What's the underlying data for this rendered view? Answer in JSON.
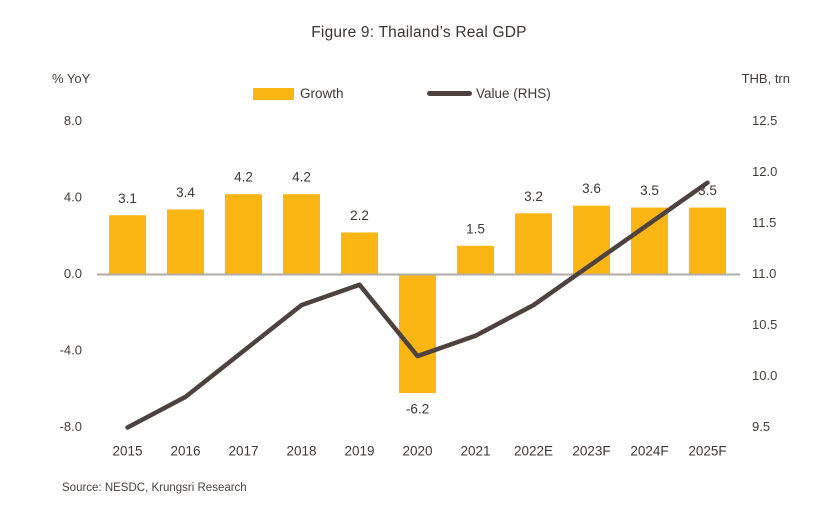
{
  "title": "Figure 9: Thailand’s Real GDP",
  "axes": {
    "left_unit": "% YoY",
    "right_unit": "THB, trn"
  },
  "legend": [
    {
      "label": "Growth",
      "marker": "bar-swatch"
    },
    {
      "label": "Value (RHS)",
      "marker": "line-swatch"
    }
  ],
  "source": "Source: NESDC, Krungsri Research",
  "colors": {
    "bar": "#fcb614",
    "line": "#4d423d",
    "text_dark": "#3d3834",
    "tick_text": "#443e3a",
    "zero_line": "#b2aba7"
  },
  "chart_data": {
    "type": "bar+line",
    "title": "Figure 9: Thailand’s Real GDP",
    "categories": [
      "2015",
      "2016",
      "2017",
      "2018",
      "2019",
      "2020",
      "2021",
      "2022E",
      "2023F",
      "2024F",
      "2025F"
    ],
    "series": [
      {
        "name": "Growth",
        "type": "bar",
        "axis": "left",
        "unit": "% YoY",
        "values": [
          3.1,
          3.4,
          4.2,
          4.2,
          2.2,
          -6.2,
          1.5,
          3.2,
          3.6,
          3.5,
          3.5
        ],
        "data_labels": [
          "3.1",
          "3.4",
          "4.2",
          "4.2",
          "2.2",
          "-6.2",
          "1.5",
          "3.2",
          "3.6",
          "3.5",
          "3.5"
        ]
      },
      {
        "name": "Value (RHS)",
        "type": "line",
        "axis": "right",
        "unit": "THB, trn",
        "values": [
          9.5,
          9.8,
          10.25,
          10.7,
          10.9,
          10.2,
          10.4,
          10.7,
          11.1,
          11.5,
          11.9
        ]
      }
    ],
    "left_axis": {
      "label": "% YoY",
      "ticks": [
        "8.0",
        "4.0",
        "0.0",
        "-4.0",
        "-8.0"
      ],
      "range": [
        -8,
        8
      ]
    },
    "right_axis": {
      "label": "THB, trn",
      "ticks": [
        "12.5",
        "12.0",
        "11.5",
        "11.0",
        "10.5",
        "10.0",
        "9.5"
      ],
      "range": [
        9.5,
        12.5
      ]
    },
    "grid": false,
    "legend_position": "top"
  }
}
